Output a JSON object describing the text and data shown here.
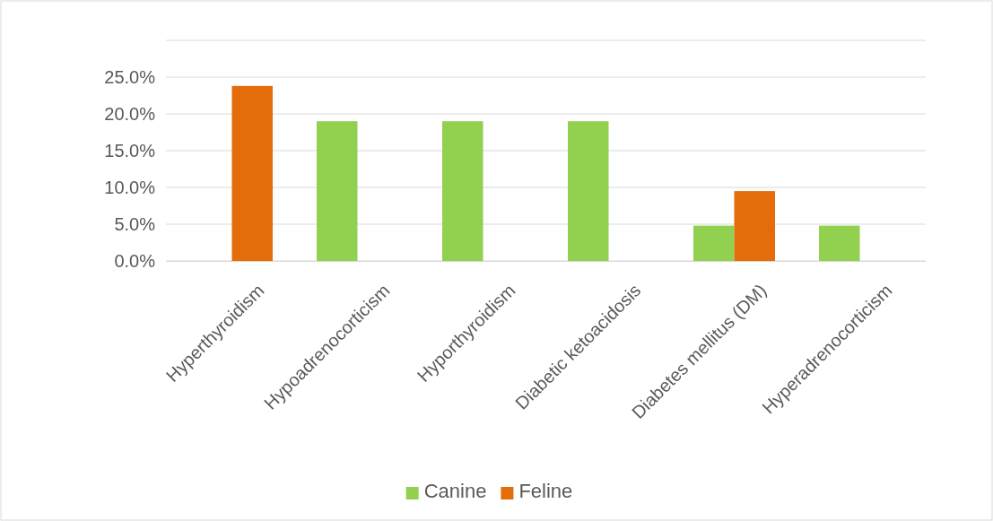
{
  "chart_data": {
    "type": "bar",
    "categories": [
      "Hyperthyroidism",
      "Hypoadrenocorticism",
      "Hyporthyroidism",
      "Diabetic ketoacidosis",
      "Diabetes mellitus (DM)",
      "Hyperadrenocorticism"
    ],
    "series": [
      {
        "name": "Canine",
        "color": "#92d050",
        "values": [
          0,
          19.0,
          19.0,
          19.0,
          4.8,
          4.8
        ]
      },
      {
        "name": "Feline",
        "color": "#e46c0a",
        "values": [
          23.8,
          0,
          0,
          0,
          9.5,
          0
        ]
      }
    ],
    "ylim": [
      0,
      30
    ],
    "yticks": [
      {
        "value": 0,
        "label": "0.0%"
      },
      {
        "value": 5,
        "label": "5.0%"
      },
      {
        "value": 10,
        "label": "10.0%"
      },
      {
        "value": 15,
        "label": "15.0%"
      },
      {
        "value": 20,
        "label": "20.0%"
      },
      {
        "value": 25,
        "label": "25.0%"
      },
      {
        "value": 30,
        "label": null
      }
    ],
    "grid": "y",
    "legend": "bottom"
  }
}
